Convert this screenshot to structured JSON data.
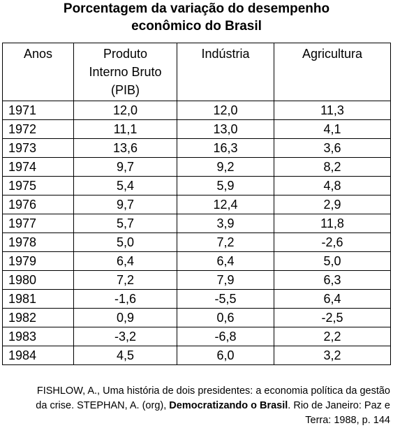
{
  "title": {
    "line1": "Porcentagem da variação do desempenho",
    "line2": "econômico do Brasil"
  },
  "table": {
    "headers": {
      "year": "Anos",
      "pib_line1": "Produto",
      "pib_line2": "Interno Bruto",
      "pib_line3": "(PIB)",
      "industry": "Indústria",
      "agriculture": "Agricultura"
    },
    "rows": [
      {
        "year": "1971",
        "pib": "12,0",
        "industry": "12,0",
        "agriculture": "11,3"
      },
      {
        "year": "1972",
        "pib": "11,1",
        "industry": "13,0",
        "agriculture": "4,1"
      },
      {
        "year": "1973",
        "pib": "13,6",
        "industry": "16,3",
        "agriculture": "3,6"
      },
      {
        "year": "1974",
        "pib": "9,7",
        "industry": "9,2",
        "agriculture": "8,2"
      },
      {
        "year": "1975",
        "pib": "5,4",
        "industry": "5,9",
        "agriculture": "4,8"
      },
      {
        "year": "1976",
        "pib": "9,7",
        "industry": "12,4",
        "agriculture": "2,9"
      },
      {
        "year": "1977",
        "pib": "5,7",
        "industry": "3,9",
        "agriculture": "11,8"
      },
      {
        "year": "1978",
        "pib": "5,0",
        "industry": "7,2",
        "agriculture": "-2,6"
      },
      {
        "year": "1979",
        "pib": "6,4",
        "industry": "6,4",
        "agriculture": "5,0"
      },
      {
        "year": "1980",
        "pib": "7,2",
        "industry": "7,9",
        "agriculture": "6,3"
      },
      {
        "year": "1981",
        "pib": "-1,6",
        "industry": "-5,5",
        "agriculture": "6,4"
      },
      {
        "year": "1982",
        "pib": "0,9",
        "industry": "0,6",
        "agriculture": "-2,5"
      },
      {
        "year": "1983",
        "pib": "-3,2",
        "industry": "-6,8",
        "agriculture": "2,2"
      },
      {
        "year": "1984",
        "pib": "4,5",
        "industry": "6,0",
        "agriculture": "3,2"
      }
    ]
  },
  "source": {
    "line1": "FISHLOW, A., Uma história de dois presidentes: a economia política da gestão",
    "line2_a": "da crise. STEPHAN, A. (org), ",
    "line2_bold": "Democratizando o Brasil",
    "line2_b": ". Rio de Janeiro: Paz e",
    "line3": "Terra: 1988, p. 144"
  }
}
